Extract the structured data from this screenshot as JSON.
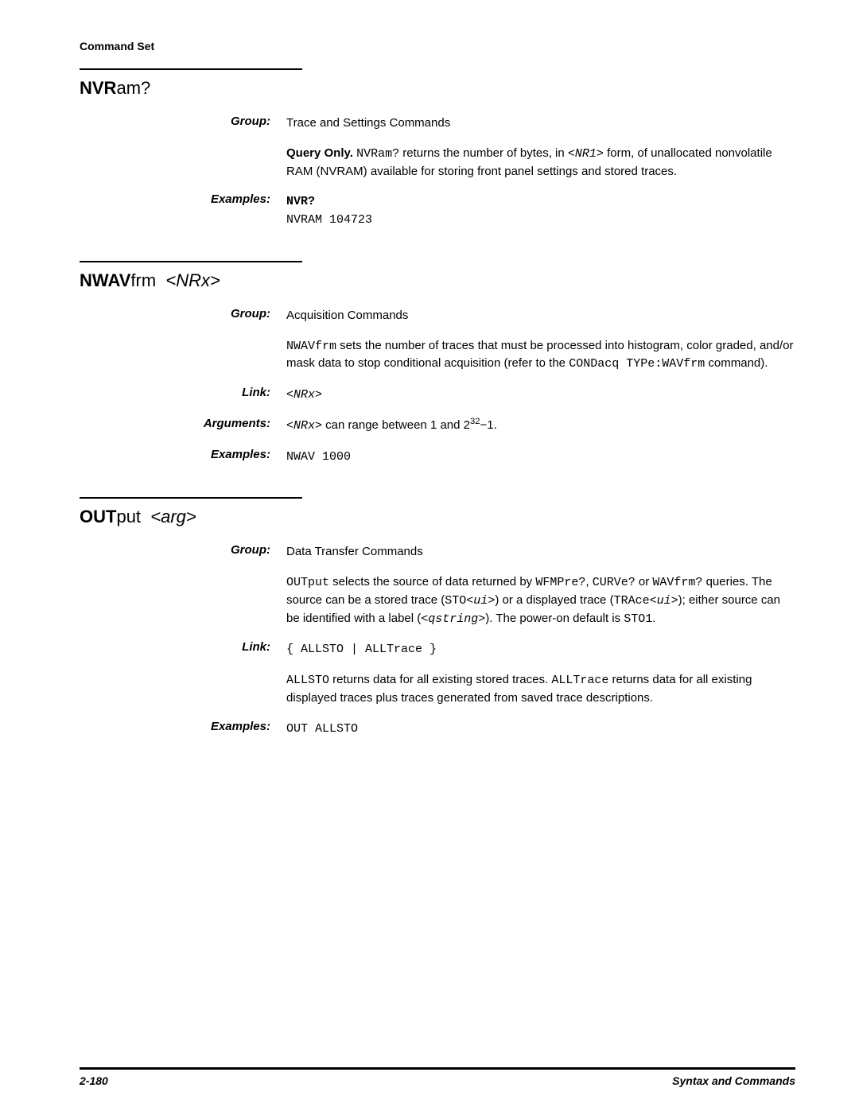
{
  "header": "Command Set",
  "sections": [
    {
      "title_html": "<b>NVR</b><span class='light'>am?</span>",
      "rows": [
        {
          "label": "Group:",
          "html": "Trace and Settings Commands"
        },
        {
          "label": "",
          "html": "<b>Query Only.</b> <span class='mono'>NVRam?</span> returns the number of bytes, in <span class='mono ital'>&lt;NR1&gt;</span> form, of unallocated nonvolatile RAM (NVRAM) available for storing front panel settings and stored traces."
        },
        {
          "label": "Examples:",
          "html": "<span class='mono'><b>NVR?</b><br>NVRAM 104723</span>"
        }
      ]
    },
    {
      "title_html": "<b>NWAV</b><span class='light'>frm &nbsp;</span><span class='ital'>&lt;NRx&gt;</span>",
      "rows": [
        {
          "label": "Group:",
          "html": "Acquisition Commands"
        },
        {
          "label": "",
          "html": "<span class='mono'>NWAVfrm</span> sets the number of traces that must be processed into histogram, color graded, and/or mask data to stop conditional acquisition (refer to the <span class='mono'>CONDacq TYPe:WAVfrm</span> command)."
        },
        {
          "label": "Link:",
          "html": "<span class='mono ital'>&lt;NRx&gt;</span>"
        },
        {
          "label": "Arguments:",
          "html": "<span class='mono ital'>&lt;NRx&gt;</span> can range between 1 and 2<sup>32</sup>&minus;1."
        },
        {
          "label": "Examples:",
          "html": "<span class='mono'>NWAV 1000</span>"
        }
      ]
    },
    {
      "title_html": "<b>OUT</b><span class='light'>put &nbsp;</span><span class='ital'>&lt;arg&gt;</span>",
      "rows": [
        {
          "label": "Group:",
          "html": "Data Transfer Commands"
        },
        {
          "label": "",
          "html": "<span class='mono'>OUTput</span> selects the source of data returned by <span class='mono'>WFMPre?</span>, <span class='mono'>CURVe?</span> or <span class='mono'>WAVfrm?</span> queries. The source can be a stored trace (<span class='mono'>STO&lt;<span class='ital'>ui</span>&gt;</span>) or a displayed trace (<span class='mono'>TRAce&lt;<span class='ital'>ui</span>&gt;</span>); either source can be identified with a label (<span class='mono ital'>&lt;qstring&gt;</span>). The power-on default is <span class='mono'>STO1</span>."
        },
        {
          "label": "Link:",
          "html": "<span class='mono'>{ ALLSTO | ALLTrace }</span>"
        },
        {
          "label": "",
          "html": "<span class='mono'>ALLSTO</span> returns data for all existing stored traces. <span class='mono'>ALLTrace</span> returns data for all existing displayed traces plus traces generated from saved trace descriptions."
        },
        {
          "label": "Examples:",
          "html": "<span class='mono'>OUT ALLSTO</span>"
        }
      ]
    }
  ],
  "footer": {
    "left": "2-180",
    "right": "Syntax and Commands"
  }
}
